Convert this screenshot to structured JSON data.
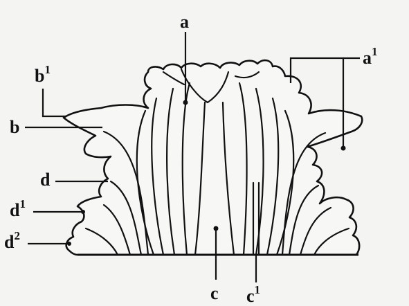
{
  "figure": {
    "labels": {
      "a": "a",
      "a1_base": "a",
      "a1_sup": "1",
      "b": "b",
      "b1_base": "b",
      "b1_sup": "1",
      "c": "c",
      "c1_base": "c",
      "c1_sup": "1",
      "d": "d",
      "d1_base": "d",
      "d1_sup": "1",
      "d2_base": "d",
      "d2_sup": "2"
    }
  }
}
